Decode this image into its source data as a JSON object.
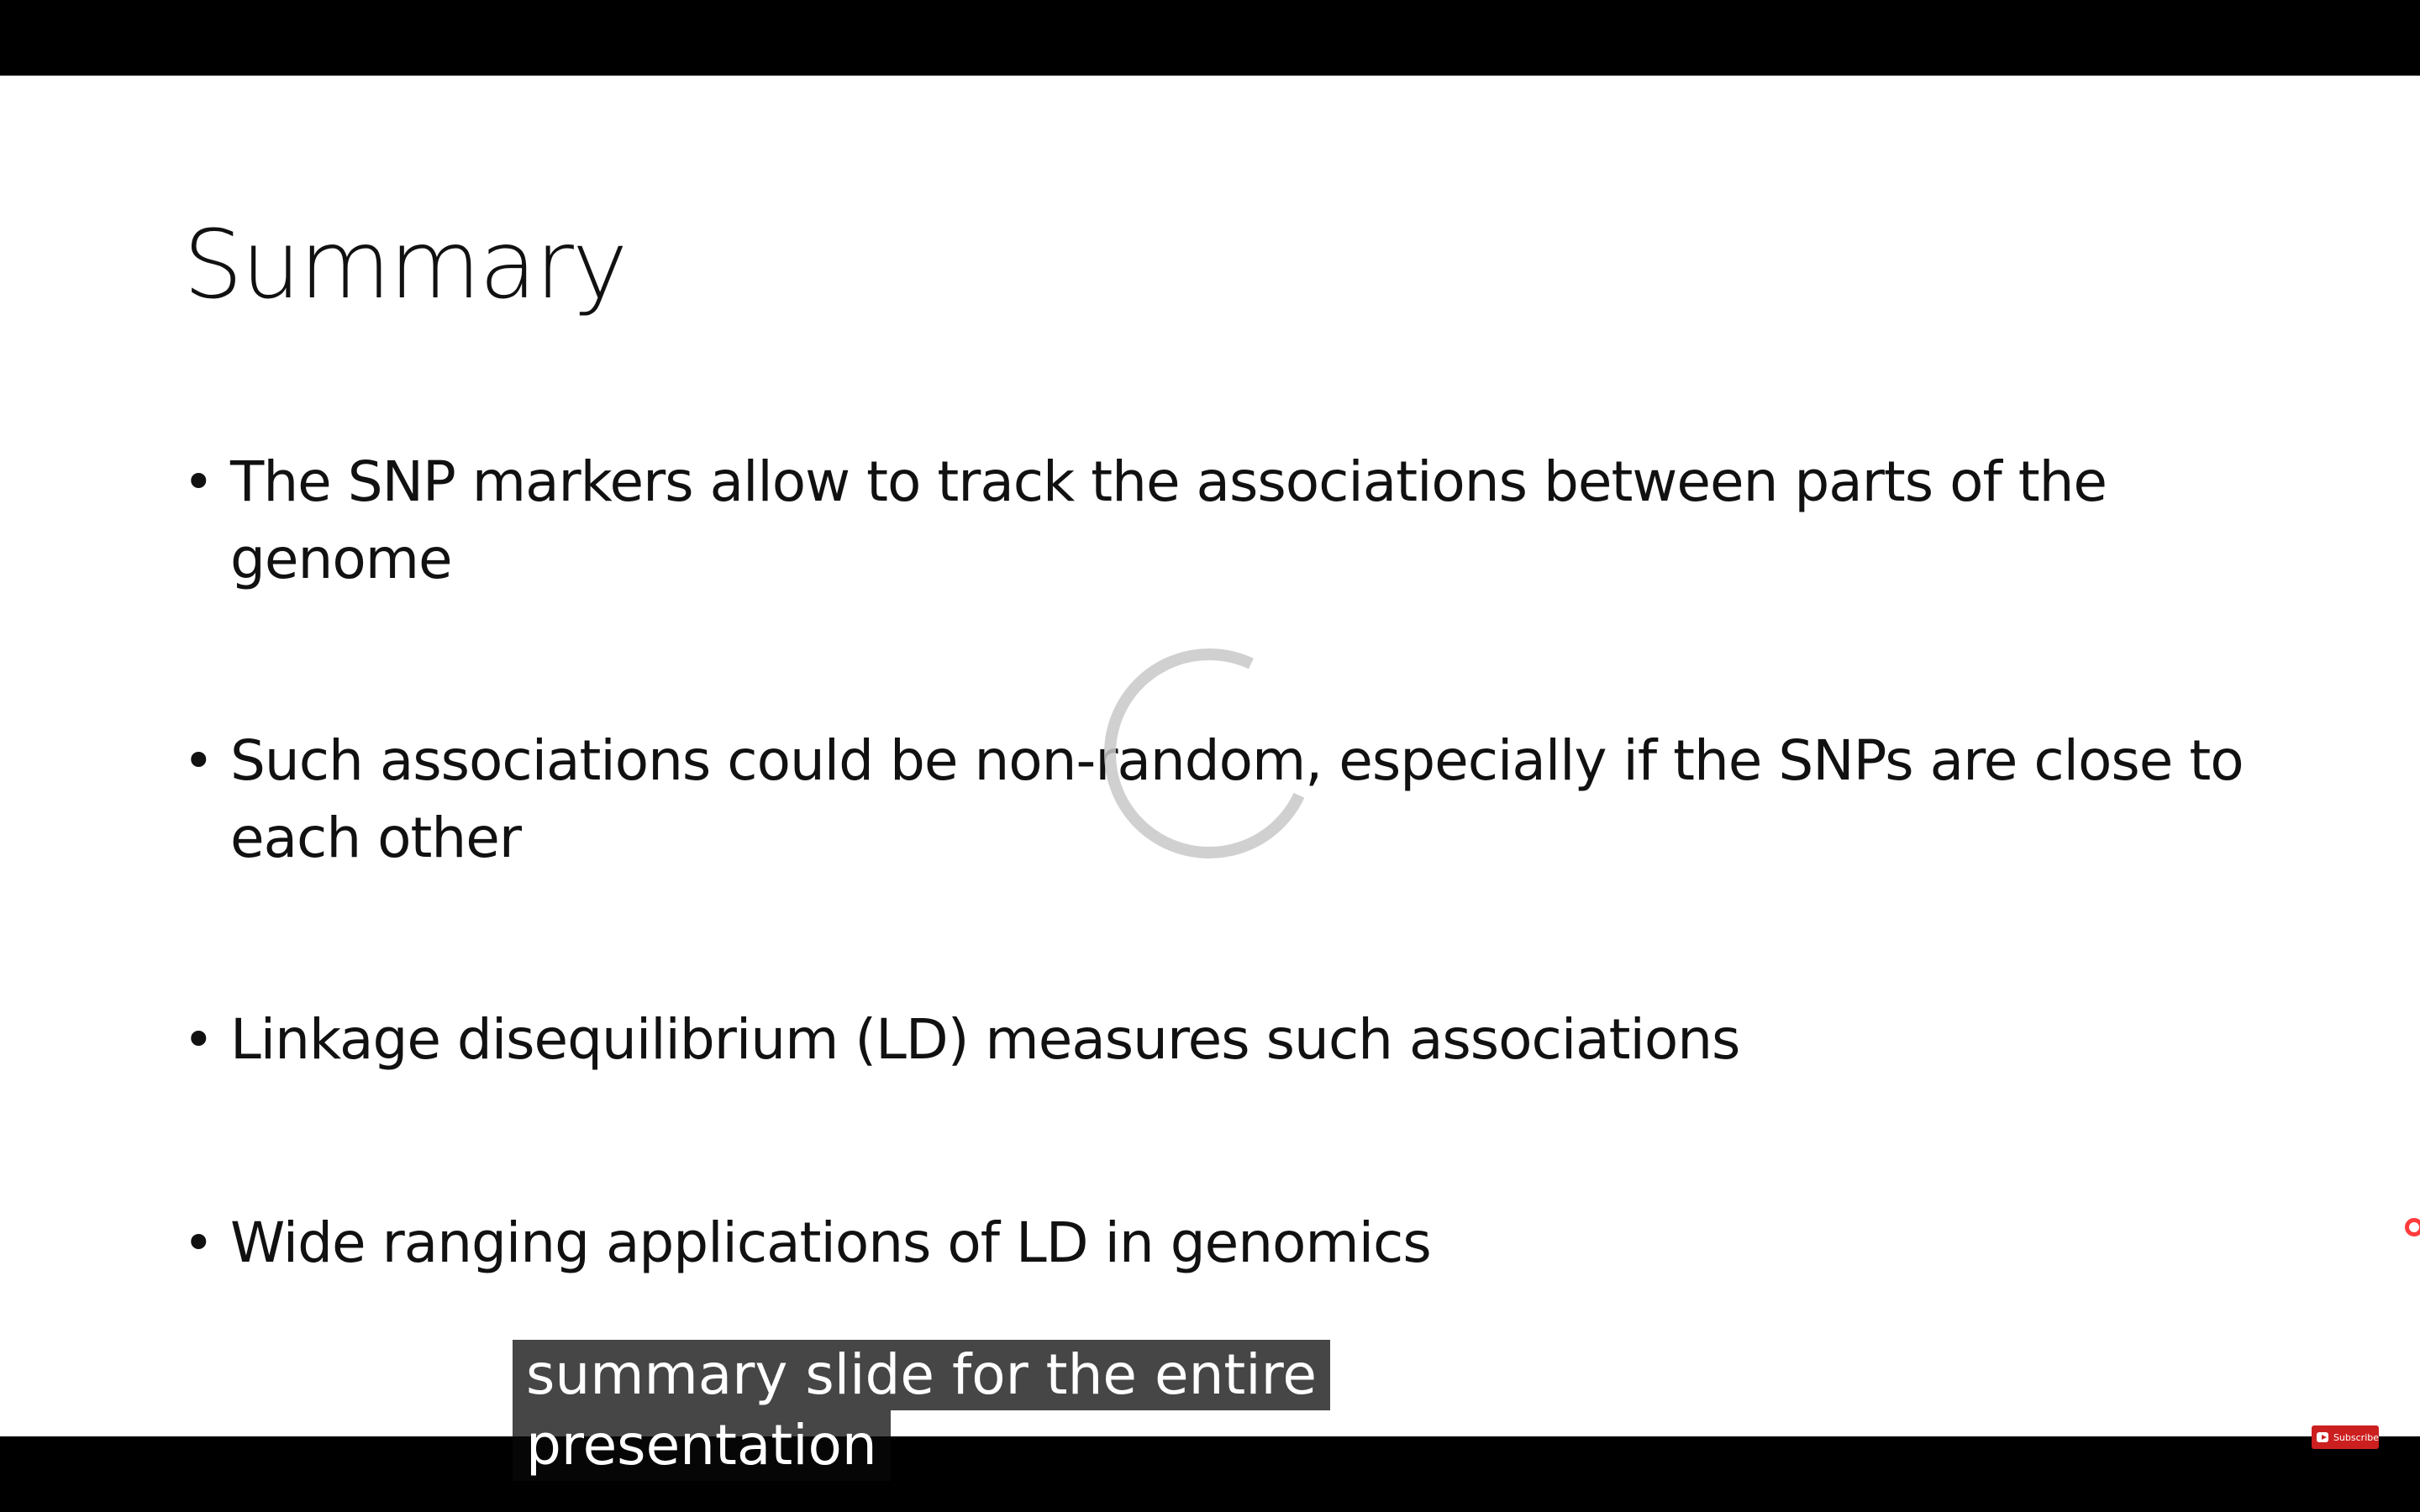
{
  "slide": {
    "title": "Summary",
    "bullets": [
      "The SNP markers allow to track the associations between parts of the genome",
      "Such associations could be non-random, especially if the SNPs are close to each other",
      "Linkage disequilibrium (LD) measures such associations",
      "Wide ranging applications of LD in genomics"
    ],
    "bullet_symbol": "•"
  },
  "captions": {
    "line1": "summary slide for the entire",
    "line2": "presentation"
  },
  "overlay": {
    "subscribe_label": "Subscribe"
  },
  "icons": {
    "spinner": "loading-spinner-icon",
    "subscribe": "subscribe-icon"
  },
  "colors": {
    "letterbox": "#000000",
    "slide_background": "#ffffff",
    "text": "#111111",
    "caption_background": "#080808",
    "caption_text": "#ffffff",
    "subscribe": "#cc1f1f"
  }
}
